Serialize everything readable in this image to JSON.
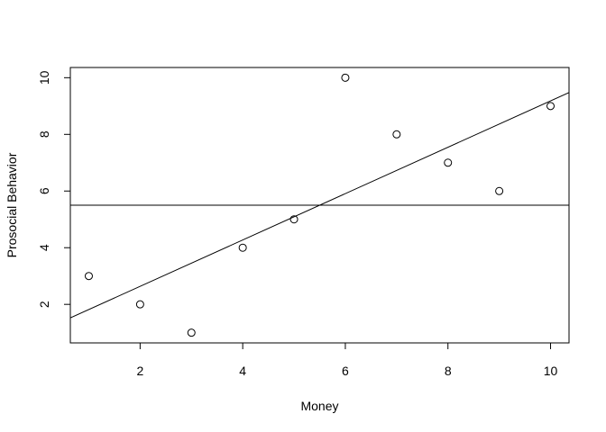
{
  "chart_data": {
    "type": "scatter",
    "title": "",
    "xlabel": "Money",
    "ylabel": "Prosocial Behavior",
    "xlim": [
      0.64,
      10.36
    ],
    "ylim": [
      0.64,
      10.36
    ],
    "x_ticks": [
      2,
      4,
      6,
      8,
      10
    ],
    "y_ticks": [
      2,
      4,
      6,
      8,
      10
    ],
    "x_tick_labels": [
      "2",
      "4",
      "6",
      "8",
      "10"
    ],
    "y_tick_labels": [
      "2",
      "4",
      "6",
      "8",
      "10"
    ],
    "grid": false,
    "legend": "none",
    "points": {
      "x": [
        1,
        2,
        3,
        4,
        5,
        6,
        7,
        8,
        9,
        10
      ],
      "y": [
        3,
        2,
        1,
        4,
        5,
        10,
        8,
        7,
        6,
        9
      ]
    },
    "reference_lines": [
      {
        "kind": "horizontal",
        "y": 5.5
      },
      {
        "kind": "regression",
        "intercept": 1.0,
        "slope": 0.8182
      }
    ],
    "colors": {
      "ink": "#000000",
      "background": "#ffffff"
    }
  }
}
